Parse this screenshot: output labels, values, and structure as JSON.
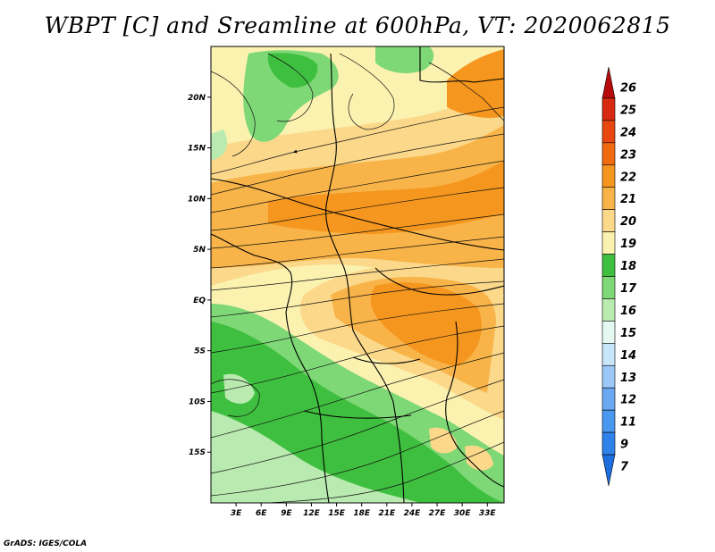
{
  "title": "WBPT [C] and Sreamline at 600hPa, VT: 2020062815",
  "footer": "GrADS: IGES/COLA",
  "map": {
    "lon_range": [
      0,
      35
    ],
    "lat_range": [
      -20,
      25
    ],
    "lat_ticks": [
      {
        "value": 20,
        "label": "20N"
      },
      {
        "value": 15,
        "label": "15N"
      },
      {
        "value": 10,
        "label": "10N"
      },
      {
        "value": 5,
        "label": "5N"
      },
      {
        "value": 0,
        "label": "EQ"
      },
      {
        "value": -5,
        "label": "5S"
      },
      {
        "value": -10,
        "label": "10S"
      },
      {
        "value": -15,
        "label": "15S"
      }
    ],
    "lon_ticks": [
      {
        "value": 3,
        "label": "3E"
      },
      {
        "value": 6,
        "label": "6E"
      },
      {
        "value": 9,
        "label": "9E"
      },
      {
        "value": 12,
        "label": "12E"
      },
      {
        "value": 15,
        "label": "15E"
      },
      {
        "value": 18,
        "label": "18E"
      },
      {
        "value": 21,
        "label": "21E"
      },
      {
        "value": 24,
        "label": "24E"
      },
      {
        "value": 27,
        "label": "27E"
      },
      {
        "value": 30,
        "label": "30E"
      },
      {
        "value": 33,
        "label": "33E"
      }
    ]
  },
  "colorbar": {
    "labels": [
      "7",
      "9",
      "11",
      "12",
      "13",
      "14",
      "15",
      "16",
      "17",
      "18",
      "19",
      "20",
      "21",
      "22",
      "23",
      "24",
      "25",
      "26"
    ],
    "colors": [
      "#1f6ee0",
      "#2f82ea",
      "#4a97f0",
      "#6aa8f2",
      "#9bc8f6",
      "#c8e6fa",
      "#e6f8f2",
      "#b9eab0",
      "#7ed876",
      "#3fbf3f",
      "#fbf2b0",
      "#fbd88a",
      "#f8b448",
      "#f5961e",
      "#f06a10",
      "#e84810",
      "#d82a10",
      "#b80c0c"
    ]
  }
}
